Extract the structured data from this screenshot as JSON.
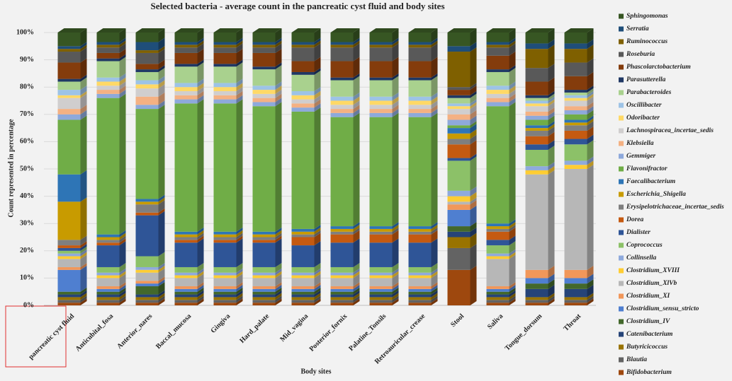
{
  "chart_data": {
    "type": "stacked_bar_3d",
    "title": "Selected bacteria - average count in the pancreatic cyst fluid and body sites",
    "xlabel": "Body sites",
    "ylabel": "Count represented in percentage",
    "categories": [
      "pancreatic cyst fluid",
      "Anticubital_fosa",
      "Anterior_nares",
      "Baccal_mucosa",
      "Gingiva",
      "Hard_palate",
      "Mid_vagina",
      "Posterior_fornix",
      "Palatine_Tonsils",
      "Retroauricular_crease",
      "Stool",
      "Saliva",
      "Tongue_dorsum",
      "Throat"
    ],
    "ylim": [
      0,
      100
    ],
    "yticks": [
      {
        "value": 0,
        "label": "0%"
      },
      {
        "value": 10,
        "label": "10%"
      },
      {
        "value": 20,
        "label": "20%"
      },
      {
        "value": 30,
        "label": "30%"
      },
      {
        "value": 40,
        "label": "40%"
      },
      {
        "value": 50,
        "label": "50%"
      },
      {
        "value": 60,
        "label": "60%"
      },
      {
        "value": 70,
        "label": "70%"
      },
      {
        "value": 80,
        "label": "80%"
      },
      {
        "value": 90,
        "label": "90%"
      },
      {
        "value": 100,
        "label": "100%"
      }
    ],
    "grid": true,
    "legend": "right",
    "series": [
      {
        "name": "Bifidobacterium",
        "color": "#9e480e",
        "values": [
          1,
          1,
          1,
          1,
          1,
          1,
          1,
          1,
          1,
          1,
          13,
          1,
          1,
          1
        ]
      },
      {
        "name": "Blautia",
        "color": "#636363",
        "values": [
          1,
          1,
          1,
          1,
          1,
          1,
          1,
          1,
          1,
          1,
          8,
          1,
          1,
          1
        ]
      },
      {
        "name": "Butyricicoccus",
        "color": "#997300",
        "values": [
          1,
          1,
          1,
          1,
          1,
          1,
          1,
          1,
          1,
          1,
          4,
          1,
          1,
          1
        ]
      },
      {
        "name": "Catenibacterium",
        "color": "#264478",
        "values": [
          1,
          1,
          1,
          1,
          1,
          1,
          1,
          1,
          1,
          1,
          2,
          1,
          3,
          3
        ]
      },
      {
        "name": "Clostridium_IV",
        "color": "#43682b",
        "values": [
          1,
          1,
          3,
          1,
          1,
          1,
          1,
          1,
          1,
          1,
          2,
          1,
          2,
          2
        ]
      },
      {
        "name": "Clostridium_sensu_stricto",
        "color": "#4f7fd0",
        "values": [
          8,
          1,
          1,
          1,
          1,
          1,
          1,
          1,
          1,
          1,
          6,
          1,
          2,
          2
        ]
      },
      {
        "name": "Clostridium_XI",
        "color": "#f1975a",
        "values": [
          1,
          1,
          1,
          1,
          1,
          1,
          1,
          1,
          1,
          1,
          2,
          1,
          3,
          3
        ]
      },
      {
        "name": "Clostridium_XlVb",
        "color": "#b7b7b7",
        "values": [
          3,
          3,
          3,
          3,
          3,
          3,
          3,
          3,
          3,
          3,
          1,
          10,
          35,
          37
        ]
      },
      {
        "name": "Clostridium_XVIII",
        "color": "#ffcd33",
        "values": [
          1,
          1,
          1,
          1,
          1,
          1,
          1,
          1,
          1,
          1,
          2,
          1,
          1.5,
          1.5
        ]
      },
      {
        "name": "Collinsella",
        "color": "#8faadc",
        "values": [
          1,
          1,
          1,
          1,
          1,
          1,
          1,
          1,
          1,
          1,
          2,
          1,
          1.5,
          1.5
        ]
      },
      {
        "name": "Coprococcus",
        "color": "#8cc168",
        "values": [
          1,
          2,
          4,
          2,
          2,
          2,
          2,
          2,
          2,
          2,
          11,
          3,
          6,
          6
        ]
      },
      {
        "name": "Dialister",
        "color": "#2f5597",
        "values": [
          1,
          8,
          15,
          9,
          9,
          9,
          8,
          9,
          9,
          9,
          1,
          2,
          2,
          2
        ]
      },
      {
        "name": "Dorea",
        "color": "#c55a11",
        "values": [
          1,
          1,
          1,
          1,
          1,
          1,
          3,
          3,
          3,
          3,
          5,
          3,
          3,
          3
        ]
      },
      {
        "name": "Erysipelotrichaceae_incertae_sedis",
        "color": "#7f7f7f",
        "values": [
          2,
          1,
          3,
          1,
          1,
          1,
          1,
          1,
          1,
          1,
          2,
          1,
          2,
          2
        ]
      },
      {
        "name": "Escherichia_Shigella",
        "color": "#c89b00",
        "values": [
          14,
          1,
          1,
          1,
          1,
          1,
          1,
          1,
          1,
          1,
          2,
          1,
          1,
          1
        ]
      },
      {
        "name": "Faecalibacterium",
        "color": "#2e75b6",
        "values": [
          10,
          1,
          1,
          1,
          1,
          1,
          1,
          1,
          1,
          1,
          2,
          1,
          1,
          1
        ]
      },
      {
        "name": "Flavonifractor",
        "color": "#70ad47",
        "values": [
          20,
          50,
          33,
          47,
          47,
          46,
          43,
          40,
          40,
          40,
          1,
          43,
          2,
          2
        ]
      },
      {
        "name": "Gemmiger",
        "color": "#8ea9db",
        "values": [
          2,
          1.5,
          1.5,
          1.5,
          1.5,
          1.5,
          1.5,
          1.5,
          1.5,
          1.5,
          2,
          1.5,
          1.5,
          1.5
        ]
      },
      {
        "name": "Klebsiella",
        "color": "#f4b183",
        "values": [
          2,
          1.5,
          3,
          1.5,
          1.5,
          1.5,
          1.5,
          1.5,
          1.5,
          1.5,
          2,
          1.5,
          1.5,
          1.5
        ]
      },
      {
        "name": "Lachnospiracea_incertae_sedis",
        "color": "#d0cece",
        "values": [
          4,
          1.5,
          3,
          1.5,
          1.5,
          1.5,
          1.5,
          1.5,
          1.5,
          1.5,
          2,
          1.5,
          2,
          2
        ]
      },
      {
        "name": "Odoribacter",
        "color": "#ffd966",
        "values": [
          1,
          1.5,
          1.5,
          1.5,
          1.5,
          1.5,
          1.5,
          1.5,
          1.5,
          1.5,
          1,
          1.5,
          1,
          1
        ]
      },
      {
        "name": "Oscillibacter",
        "color": "#9dc3e6",
        "values": [
          2,
          1.5,
          1.5,
          1.5,
          1.5,
          1.5,
          1.5,
          1.5,
          1.5,
          1.5,
          1,
          1.5,
          1,
          1
        ]
      },
      {
        "name": "Parabacteroides",
        "color": "#a9d18e",
        "values": [
          3,
          6,
          3,
          6,
          6,
          6,
          6,
          6,
          6,
          6,
          2,
          5,
          1,
          1
        ]
      },
      {
        "name": "Parasutterella",
        "color": "#203864",
        "values": [
          1,
          1,
          1,
          1,
          1,
          1,
          1,
          1,
          1,
          1,
          1,
          1,
          1,
          1
        ]
      },
      {
        "name": "Phascolarctobacterium",
        "color": "#843c0c",
        "values": [
          6,
          2,
          2,
          4,
          4,
          5,
          4,
          6,
          6,
          6,
          2,
          5,
          5,
          5
        ]
      },
      {
        "name": "Roseburia",
        "color": "#595959",
        "values": [
          4,
          2,
          4,
          2,
          2,
          2,
          5,
          5,
          5,
          5,
          1,
          3,
          5,
          5
        ]
      },
      {
        "name": "Ruminococcus",
        "color": "#7f6000",
        "values": [
          1,
          1,
          1,
          1,
          1,
          1,
          1,
          1,
          1,
          1,
          13,
          1,
          7,
          5
        ]
      },
      {
        "name": "Serratia",
        "color": "#1f4e79",
        "values": [
          1,
          1,
          3,
          1,
          1,
          1,
          1,
          1,
          1,
          1,
          2,
          1,
          2,
          2
        ]
      },
      {
        "name": "Sphingomonas",
        "color": "#375623",
        "values": [
          5,
          3.5,
          3.5,
          3.5,
          3.5,
          3.5,
          3.5,
          3.5,
          3.5,
          3.5,
          5,
          3.5,
          4,
          4
        ]
      }
    ]
  }
}
